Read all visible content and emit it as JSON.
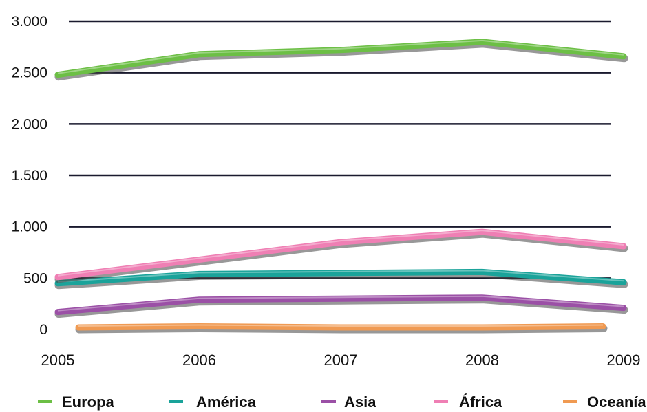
{
  "chart_data": {
    "type": "line",
    "title": "",
    "xlabel": "",
    "ylabel": "",
    "x": [
      "2005",
      "2006",
      "2007",
      "2008",
      "2009"
    ],
    "ylim": [
      0,
      3000
    ],
    "yticks": [
      {
        "value": 0,
        "label": "0"
      },
      {
        "value": 500,
        "label": "500"
      },
      {
        "value": 1000,
        "label": "1.000"
      },
      {
        "value": 1500,
        "label": "1.500"
      },
      {
        "value": 2000,
        "label": "2.000"
      },
      {
        "value": 2500,
        "label": "2.500"
      },
      {
        "value": 3000,
        "label": "3.000"
      }
    ],
    "grid": true,
    "legend_position": "bottom",
    "series": [
      {
        "name": "Europa",
        "color": "#6cbf45",
        "values": [
          2480,
          2680,
          2720,
          2800,
          2660
        ]
      },
      {
        "name": "América",
        "color": "#1aa39a",
        "values": [
          450,
          540,
          550,
          560,
          460
        ]
      },
      {
        "name": "Asia",
        "color": "#9b50a6",
        "values": [
          170,
          290,
          300,
          310,
          210
        ]
      },
      {
        "name": "África",
        "color": "#ef7fb4",
        "values": [
          510,
          680,
          850,
          950,
          810
        ]
      },
      {
        "name": "Oceanía",
        "color": "#f09a52",
        "values": [
          20,
          30,
          20,
          20,
          30
        ]
      }
    ]
  }
}
